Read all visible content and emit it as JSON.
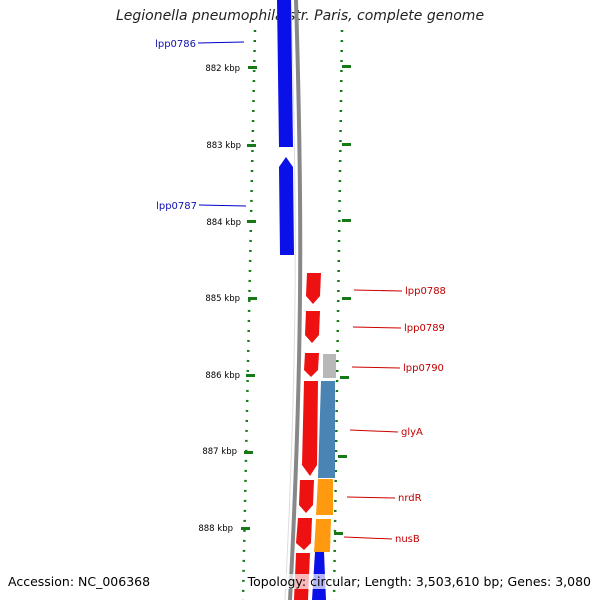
{
  "title": "Legionella pneumophila str. Paris, complete genome",
  "footer": {
    "accession": "Accession: NC_006368",
    "topology": "Topology: circular; Length: 3,503,610 bp; Genes: 3,080"
  },
  "colors": {
    "blue_gene": "#0a10e8",
    "red_gene": "#ee1111",
    "steelblue_cog": "#4a84b4",
    "orange_cog": "#ff9a10",
    "gray_cog": "#b8b8b8",
    "tick_green": "#157a15",
    "backbone": "#888888"
  },
  "scale_labels": [
    "882 kbp",
    "883 kbp",
    "884 kbp",
    "885 kbp",
    "886 kbp",
    "887 kbp",
    "888 kbp"
  ],
  "gene_labels": [
    {
      "text": "lpp0786",
      "strand": "reverse"
    },
    {
      "text": "lpp0787",
      "strand": "reverse"
    },
    {
      "text": "lpp0788",
      "strand": "forward"
    },
    {
      "text": "lpp0789",
      "strand": "forward"
    },
    {
      "text": "lpp0790",
      "strand": "forward"
    },
    {
      "text": "glyA",
      "strand": "forward"
    },
    {
      "text": "nrdR",
      "strand": "forward"
    },
    {
      "text": "nusB",
      "strand": "forward"
    }
  ]
}
